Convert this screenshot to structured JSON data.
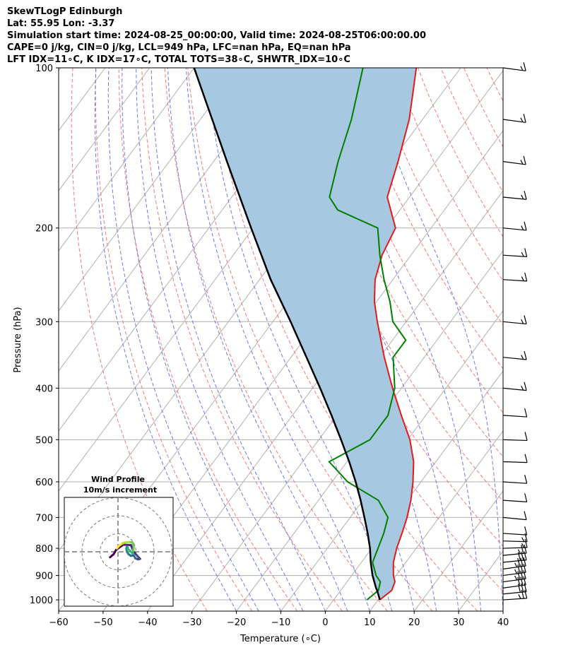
{
  "header": {
    "line1": "SkewTLogP Edinburgh",
    "line2": "Lat: 55.95   Lon: -3.37",
    "line3": "Simulation start time: 2024-08-25_00:00:00, Valid time: 2024-08-25T06:00:00.00",
    "line4": "CAPE=0 j/kg, CIN=0 j/kg, LCL=949 hPa, LFC=nan hPa, EQ=nan hPa",
    "line5": "LFT IDX=11∘C, K IDX=17∘C, TOTAL TOTS=38∘C, SHWTR_IDX=10∘C"
  },
  "chart_data": {
    "type": "skew-t",
    "xlabel": "Temperature (∘C)",
    "ylabel": "Pressure (hPa)",
    "xlim": [
      -60,
      40
    ],
    "ylim": [
      1050,
      100
    ],
    "x_ticks": [
      "−60",
      "−50",
      "−40",
      "−30",
      "−20",
      "−10",
      "0",
      "10",
      "20",
      "30",
      "40"
    ],
    "y_ticks": [
      "1000",
      "900",
      "800",
      "700",
      "600",
      "500",
      "400",
      "300",
      "200",
      "100"
    ],
    "y_tick_values": [
      1000,
      900,
      800,
      700,
      600,
      500,
      400,
      300,
      200,
      100
    ],
    "temperature": {
      "color": "#e31a1c",
      "points": [
        [
          1000,
          10.4
        ],
        [
          960,
          11.5
        ],
        [
          925,
          10.8
        ],
        [
          900,
          9.4
        ],
        [
          850,
          7.2
        ],
        [
          800,
          5.6
        ],
        [
          750,
          4.3
        ],
        [
          700,
          2.8
        ],
        [
          650,
          0.8
        ],
        [
          600,
          -1.8
        ],
        [
          550,
          -5.0
        ],
        [
          500,
          -9.5
        ],
        [
          450,
          -15.5
        ],
        [
          400,
          -22.0
        ],
        [
          350,
          -29.0
        ],
        [
          300,
          -36.5
        ],
        [
          275,
          -40.5
        ],
        [
          250,
          -44.0
        ],
        [
          225,
          -46.5
        ],
        [
          200,
          -48.0
        ],
        [
          175,
          -55.0
        ],
        [
          150,
          -58.5
        ],
        [
          125,
          -63.0
        ],
        [
          110,
          -67.0
        ],
        [
          100,
          -70.0
        ]
      ]
    },
    "dewpoint": {
      "color": "#008000",
      "points": [
        [
          1000,
          7.5
        ],
        [
          960,
          8.5
        ],
        [
          925,
          7.5
        ],
        [
          900,
          5.5
        ],
        [
          850,
          2.5
        ],
        [
          800,
          1.4
        ],
        [
          750,
          0.2
        ],
        [
          700,
          -1.5
        ],
        [
          650,
          -6.5
        ],
        [
          600,
          -16.5
        ],
        [
          550,
          -24.0
        ],
        [
          500,
          -18.5
        ],
        [
          450,
          -18.5
        ],
        [
          400,
          -21.5
        ],
        [
          350,
          -27.0
        ],
        [
          325,
          -27.0
        ],
        [
          300,
          -33.0
        ],
        [
          275,
          -37.0
        ],
        [
          250,
          -42.0
        ],
        [
          225,
          -47.0
        ],
        [
          200,
          -52.0
        ],
        [
          185,
          -64.0
        ],
        [
          175,
          -68.0
        ],
        [
          150,
          -72.0
        ],
        [
          125,
          -76.0
        ],
        [
          100,
          -82.0
        ]
      ]
    },
    "parcel": {
      "color": "#000000",
      "points": [
        [
          1000,
          10.4
        ],
        [
          960,
          8.2
        ],
        [
          949,
          7.5
        ],
        [
          900,
          4.7
        ],
        [
          850,
          2.1
        ],
        [
          800,
          -0.4
        ],
        [
          750,
          -3.4
        ],
        [
          700,
          -6.8
        ],
        [
          650,
          -10.5
        ],
        [
          600,
          -14.7
        ],
        [
          550,
          -19.5
        ],
        [
          500,
          -25.0
        ],
        [
          450,
          -31.2
        ],
        [
          400,
          -38.3
        ],
        [
          350,
          -46.5
        ],
        [
          300,
          -56.0
        ],
        [
          250,
          -67.5
        ],
        [
          200,
          -80.5
        ],
        [
          150,
          -97.0
        ],
        [
          100,
          -120.0
        ]
      ]
    },
    "cin_fill": "#a6c8e0",
    "winds": {
      "pressures": [
        1000,
        975,
        950,
        925,
        900,
        875,
        850,
        825,
        800,
        775,
        750,
        700,
        650,
        600,
        550,
        500,
        450,
        400,
        350,
        300,
        250,
        225,
        200,
        175,
        150,
        125,
        100
      ],
      "speeds_ms": [
        14,
        15,
        16,
        17,
        18,
        18,
        15,
        12,
        9,
        7,
        6,
        6,
        6,
        5,
        5,
        5,
        6,
        7,
        7,
        7,
        8,
        8,
        8,
        9,
        9,
        9,
        9
      ],
      "directions_deg": [
        260,
        255,
        250,
        250,
        250,
        250,
        255,
        255,
        265,
        275,
        280,
        285,
        280,
        280,
        275,
        275,
        280,
        285,
        285,
        285,
        280,
        280,
        285,
        285,
        290,
        290,
        290
      ]
    },
    "inset": {
      "title1": "Wind Profile",
      "title2": "10m/s increment",
      "hodograph": [
        [
          -4.5,
          -3.1
        ],
        [
          -2.5,
          -1.4
        ],
        [
          -1.0,
          1.2
        ],
        [
          3.0,
          4.0
        ],
        [
          7.3,
          3.8
        ],
        [
          8.9,
          0.0
        ],
        [
          10.3,
          -1.6
        ],
        [
          12.5,
          -4.0
        ],
        [
          11.3,
          -4.3
        ],
        [
          9.8,
          -3.6
        ],
        [
          8.9,
          -2.0
        ],
        [
          7.3,
          -2.3
        ],
        [
          5.8,
          -1.2
        ],
        [
          5.0,
          0.2
        ],
        [
          4.7,
          1.6
        ],
        [
          4.9,
          2.7
        ],
        [
          5.5,
          2.5
        ],
        [
          5.7,
          1.5
        ],
        [
          7.0,
          0.5
        ],
        [
          8.2,
          -1.0
        ],
        [
          8.7,
          0.8
        ],
        [
          8.9,
          3.0
        ],
        [
          8.2,
          5.3
        ],
        [
          6.5,
          5.5
        ],
        [
          4.7,
          5.4
        ],
        [
          3.4,
          5.1
        ],
        [
          1.8,
          4.3
        ],
        [
          0.2,
          3.0
        ],
        [
          -0.6,
          1.9
        ]
      ]
    }
  }
}
